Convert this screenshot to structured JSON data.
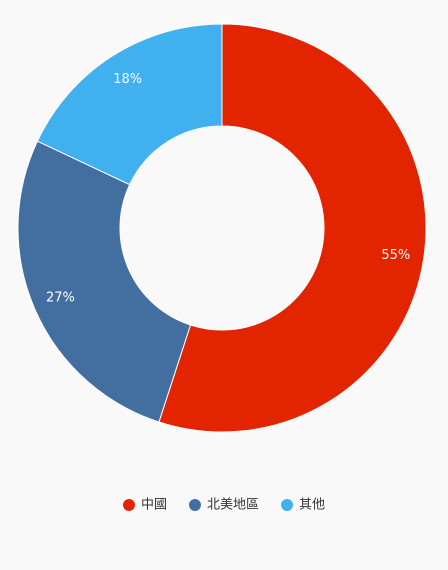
{
  "chart_data": {
    "type": "donut",
    "categories": [
      "中國",
      "北美地區",
      "其他"
    ],
    "values": [
      55,
      27,
      18
    ],
    "value_labels": [
      "55%",
      "27%",
      "18%"
    ],
    "colors": [
      "#e22400",
      "#426fa0",
      "#40b0ee"
    ],
    "legend": "bottom"
  }
}
